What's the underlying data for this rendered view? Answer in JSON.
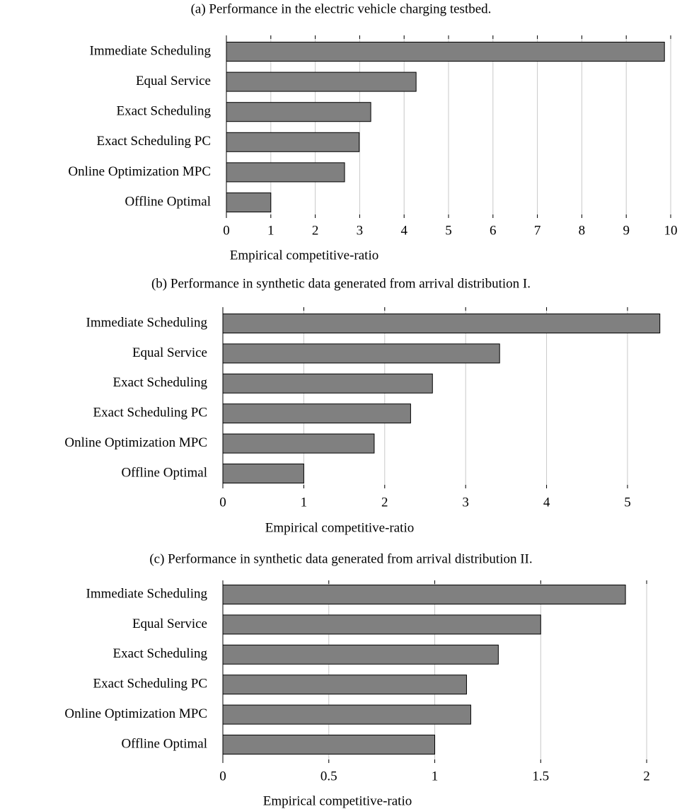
{
  "chart_data": [
    {
      "type": "bar",
      "orientation": "horizontal",
      "title": "(a) Performance in the electric vehicle charging testbed.",
      "categories": [
        "Immediate Scheduling",
        "Equal Service",
        "Exact Scheduling",
        "Exact Scheduling PC",
        "Online Optimization MPC",
        "Offline Optimal"
      ],
      "values": [
        9.86,
        4.27,
        3.25,
        2.99,
        2.66,
        1.0
      ],
      "color": "#808080",
      "xlabel": "Empirical competitive-ratio",
      "xlim": [
        0,
        10
      ],
      "xticks": [
        0,
        1,
        2,
        3,
        4,
        5,
        6,
        7,
        8,
        9,
        10
      ],
      "grid": true
    },
    {
      "type": "bar",
      "orientation": "horizontal",
      "title": "(b) Performance in synthetic data generated from arrival distribution I.",
      "categories": [
        "Immediate Scheduling",
        "Equal Service",
        "Exact Scheduling",
        "Exact Scheduling PC",
        "Online Optimization MPC",
        "Offline Optimal"
      ],
      "values": [
        5.4,
        3.42,
        2.59,
        2.32,
        1.87,
        1.0
      ],
      "color": "#808080",
      "xlabel": "Empirical competitive-ratio",
      "xlim": [
        0,
        5.42
      ],
      "xticks": [
        0,
        1,
        2,
        3,
        4,
        5
      ],
      "grid": true
    },
    {
      "type": "bar",
      "orientation": "horizontal",
      "title": "(c) Performance in synthetic data generated from arrival distribution II.",
      "categories": [
        "Immediate Scheduling",
        "Equal Service",
        "Exact Scheduling",
        "Exact Scheduling PC",
        "Online Optimization MPC",
        "Offline Optimal"
      ],
      "values": [
        1.9,
        1.5,
        1.3,
        1.15,
        1.17,
        1.0
      ],
      "color": "#808080",
      "xlabel": "Empirical competitive-ratio",
      "xlim": [
        0,
        2.07
      ],
      "xticks": [
        0,
        0.5,
        1,
        1.5,
        2
      ],
      "grid": true
    }
  ]
}
